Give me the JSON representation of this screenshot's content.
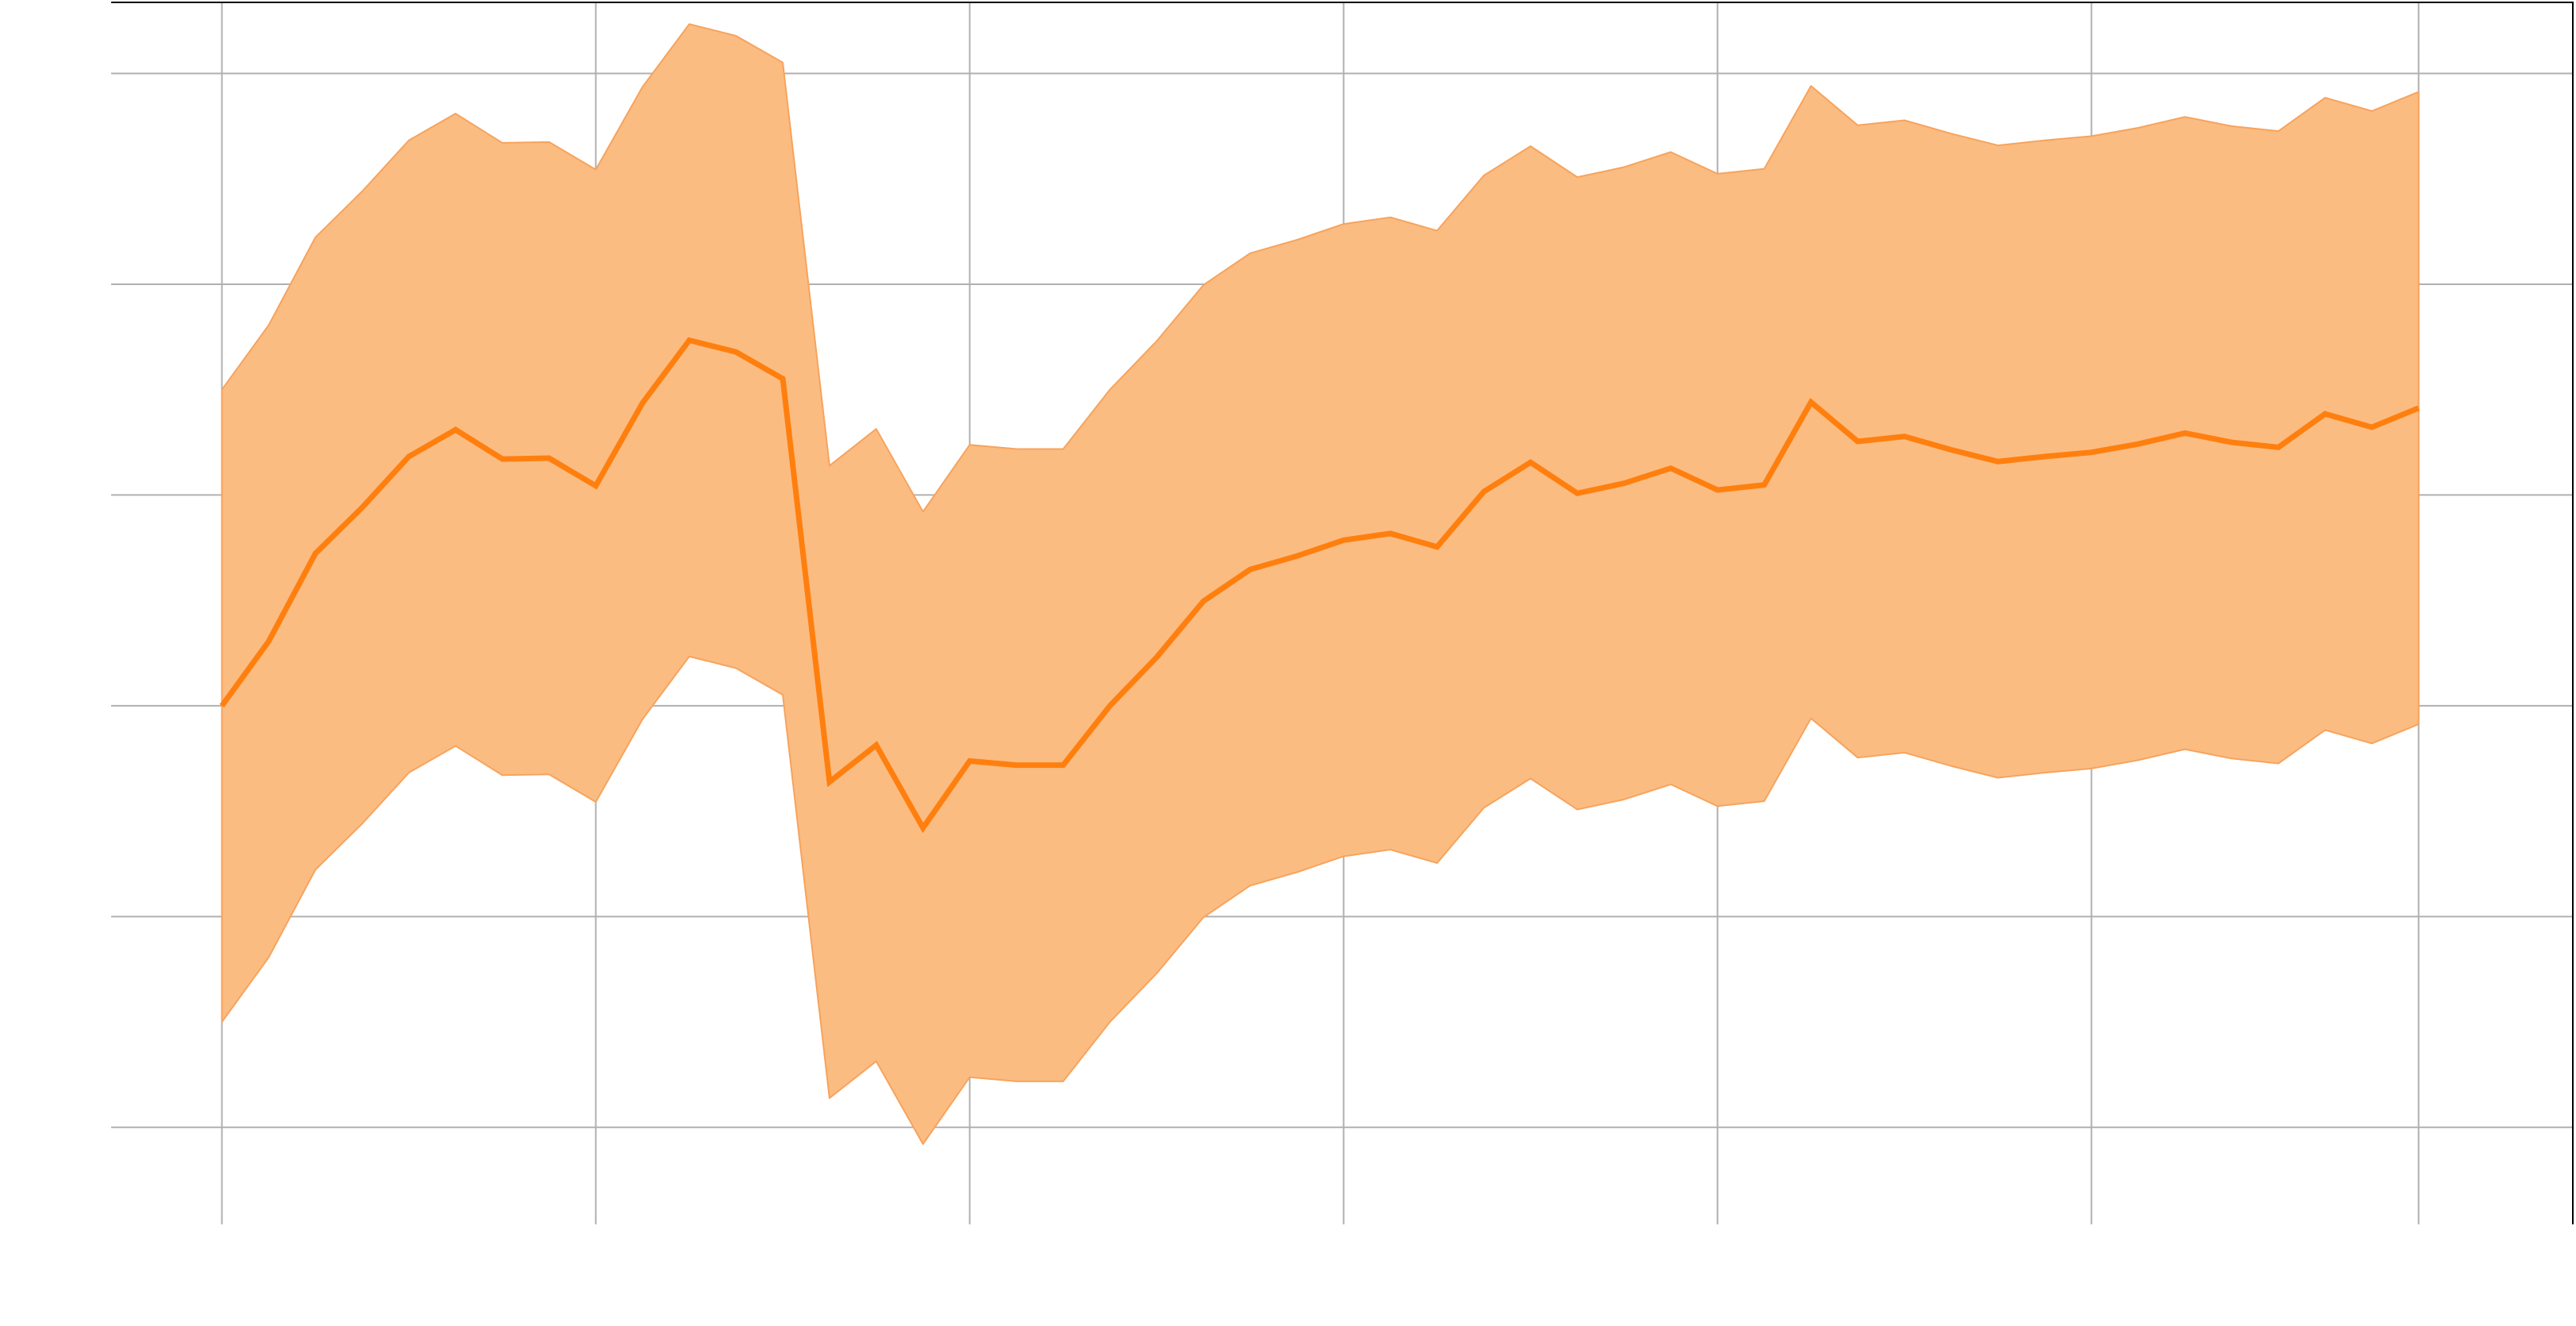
{
  "chart_data": {
    "type": "area",
    "x": [
      0,
      1,
      2,
      3,
      4,
      5,
      6,
      7,
      8,
      9,
      10,
      11,
      12,
      13,
      14,
      15,
      16,
      17,
      18,
      19,
      20,
      21,
      22,
      23,
      24,
      25,
      26,
      27,
      28,
      29,
      30,
      31,
      32,
      33,
      34,
      35,
      36,
      37,
      38,
      39,
      40,
      41,
      42,
      43,
      44,
      45,
      46,
      47
    ],
    "series": [
      {
        "role": "mean",
        "values": [
          0.0,
          0.077,
          0.182,
          0.237,
          0.298,
          0.33,
          0.295,
          0.296,
          0.263,
          0.362,
          0.437,
          0.423,
          0.391,
          -0.091,
          -0.047,
          -0.146,
          -0.066,
          -0.071,
          -0.071,
          0.0,
          0.058,
          0.125,
          0.163,
          0.179,
          0.198,
          0.206,
          0.19,
          0.256,
          0.291,
          0.254,
          0.266,
          0.284,
          0.258,
          0.264,
          0.363,
          0.316,
          0.322,
          0.306,
          0.292,
          0.298,
          0.303,
          0.313,
          0.326,
          0.315,
          0.309,
          0.349,
          0.333,
          0.356
        ],
        "color": "#ff7f0e"
      },
      {
        "role": "band",
        "lower": [
          -0.378,
          -0.301,
          -0.196,
          -0.141,
          -0.08,
          -0.048,
          -0.083,
          -0.082,
          -0.115,
          -0.016,
          0.059,
          0.045,
          0.013,
          -0.469,
          -0.425,
          -0.524,
          -0.444,
          -0.449,
          -0.449,
          -0.378,
          -0.32,
          -0.253,
          -0.215,
          -0.199,
          -0.18,
          -0.172,
          -0.188,
          -0.122,
          -0.087,
          -0.124,
          -0.112,
          -0.094,
          -0.12,
          -0.114,
          -0.015,
          -0.062,
          -0.056,
          -0.072,
          -0.086,
          -0.08,
          -0.075,
          -0.065,
          -0.052,
          -0.063,
          -0.069,
          -0.029,
          -0.045,
          -0.022
        ],
        "upper": [
          0.378,
          0.455,
          0.56,
          0.615,
          0.676,
          0.708,
          0.673,
          0.674,
          0.641,
          0.74,
          0.815,
          0.801,
          0.769,
          0.287,
          0.331,
          0.232,
          0.312,
          0.307,
          0.307,
          0.378,
          0.436,
          0.503,
          0.541,
          0.557,
          0.576,
          0.584,
          0.568,
          0.634,
          0.669,
          0.632,
          0.644,
          0.662,
          0.636,
          0.642,
          0.741,
          0.694,
          0.7,
          0.684,
          0.67,
          0.676,
          0.681,
          0.691,
          0.704,
          0.693,
          0.687,
          0.727,
          0.711,
          0.734
        ],
        "color": "#fbbc82"
      }
    ],
    "xlim": [
      -2.37,
      50.3
    ],
    "ylim": [
      -0.62,
      0.84
    ],
    "xticks": [
      0,
      8,
      16,
      24,
      32,
      40,
      47
    ],
    "yticks": [
      -0.504,
      -0.252,
      0.0,
      0.252,
      0.504,
      0.756
    ],
    "grid": true,
    "title": "",
    "xlabel": "",
    "ylabel": ""
  }
}
